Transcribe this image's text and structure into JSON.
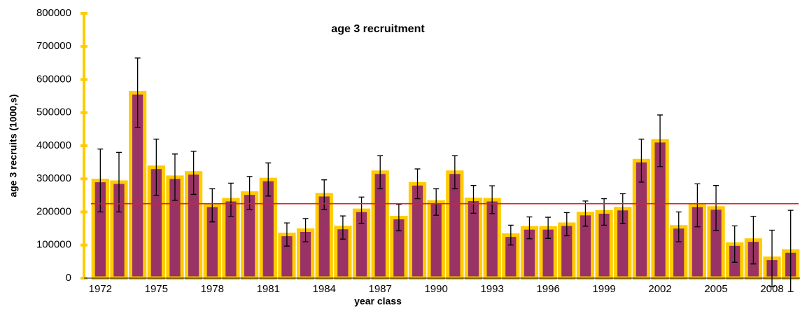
{
  "chart_data": {
    "type": "bar",
    "title": "age 3 recruitment",
    "xlabel": "year class",
    "ylabel": "age 3 recruits (1000,s)",
    "categories": [
      "1972",
      null,
      null,
      "1975",
      null,
      null,
      "1978",
      null,
      null,
      "1981",
      null,
      null,
      "1984",
      null,
      null,
      "1987",
      null,
      null,
      "1990",
      null,
      null,
      "1993",
      null,
      null,
      "1996",
      null,
      null,
      "1999",
      null,
      null,
      "2002",
      null,
      null,
      "2005",
      null,
      null,
      "2008",
      null
    ],
    "values": [
      295000,
      290000,
      560000,
      335000,
      305000,
      318000,
      220000,
      237000,
      257000,
      298000,
      132000,
      145000,
      252000,
      153000,
      205000,
      320000,
      183000,
      285000,
      230000,
      320000,
      238000,
      237000,
      130000,
      152000,
      152000,
      163000,
      195000,
      200000,
      210000,
      355000,
      415000,
      155000,
      220000,
      212000,
      103000,
      115000,
      60000,
      82000
    ],
    "errors": [
      95000,
      90000,
      105000,
      85000,
      70000,
      65000,
      50000,
      50000,
      50000,
      50000,
      35000,
      35000,
      45000,
      35000,
      40000,
      50000,
      40000,
      45000,
      40000,
      50000,
      42000,
      42000,
      30000,
      33000,
      32000,
      35000,
      38000,
      40000,
      45000,
      65000,
      78000,
      45000,
      65000,
      68000,
      55000,
      72000,
      85000,
      123000
    ],
    "color": "#993366",
    "edge_color": "#ffcc00",
    "reference_line": 225000,
    "reference_color": "#e0201b",
    "ylim": [
      0,
      800000
    ],
    "yticks": [
      0,
      100000,
      200000,
      300000,
      400000,
      500000,
      600000,
      700000,
      800000
    ],
    "grid": false
  }
}
